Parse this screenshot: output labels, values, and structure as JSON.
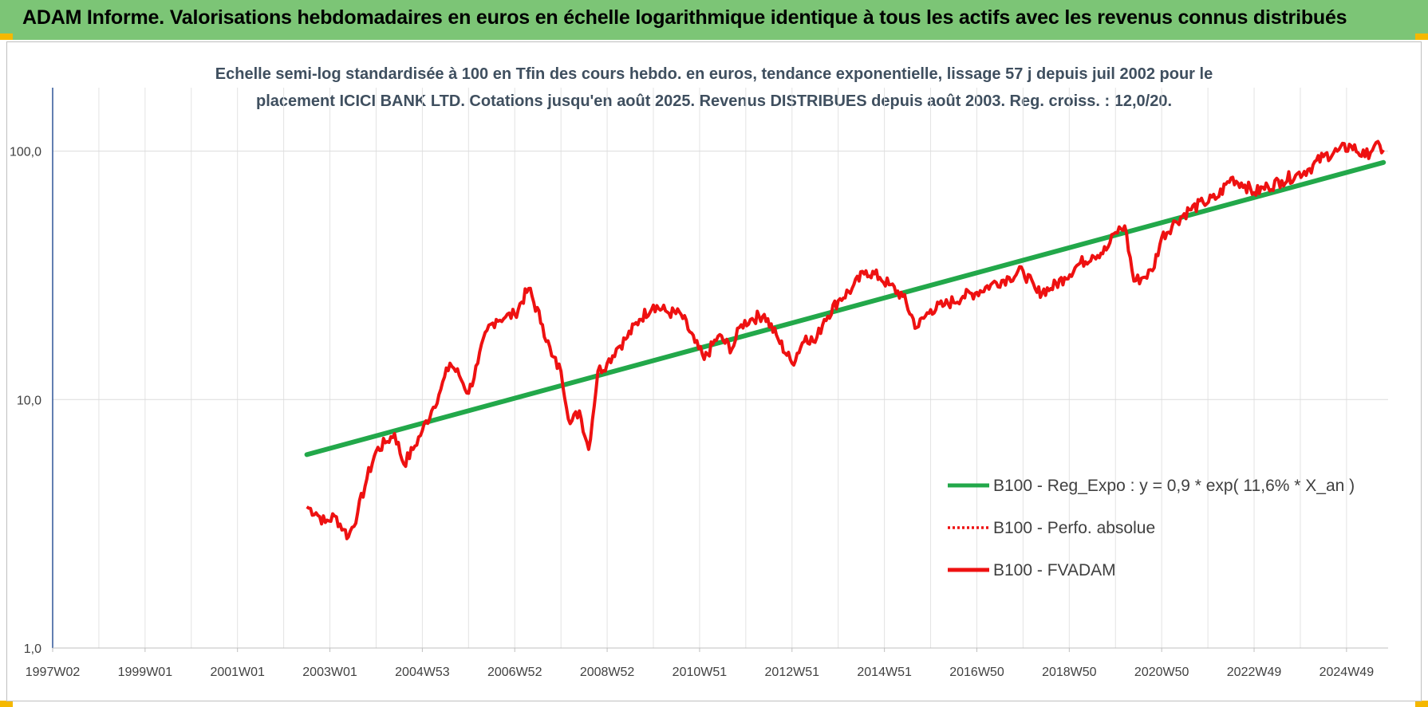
{
  "banner": {
    "title": "ADAM Informe. Valorisations hebdomadaires en euros en échelle logarithmique identique à tous les actifs avec les revenus connus distribués",
    "background": "#7cc576"
  },
  "chart_data": {
    "type": "line",
    "title_lines": [
      "Echelle semi-log standardisée à 100 en Tfin des cours hebdo. en euros, tendance exponentielle, lissage 57 j depuis juil 2002 pour le",
      "placement ICICI BANK LTD. Cotations jusqu'en août 2025.  Revenus DISTRIBUES depuis août 2003. Reg. croiss. : 12,0/20."
    ],
    "y_scale": "log",
    "ylim": [
      1,
      180
    ],
    "y_ticks": [
      {
        "value": 1,
        "label": "1,0"
      },
      {
        "value": 10,
        "label": "10,0"
      },
      {
        "value": 100,
        "label": "100,0"
      }
    ],
    "xlim": [
      1997.0,
      2025.9
    ],
    "x_ticks": [
      {
        "value": 1997.0,
        "label": "1997W02"
      },
      {
        "value": 1999.0,
        "label": "1999W01"
      },
      {
        "value": 2001.0,
        "label": "2001W01"
      },
      {
        "value": 2003.0,
        "label": "2003W01"
      },
      {
        "value": 2005.0,
        "label": "2004W53"
      },
      {
        "value": 2007.0,
        "label": "2006W52"
      },
      {
        "value": 2009.0,
        "label": "2008W52"
      },
      {
        "value": 2011.0,
        "label": "2010W51"
      },
      {
        "value": 2013.0,
        "label": "2012W51"
      },
      {
        "value": 2015.0,
        "label": "2014W51"
      },
      {
        "value": 2017.0,
        "label": "2016W50"
      },
      {
        "value": 2019.0,
        "label": "2018W50"
      },
      {
        "value": 2021.0,
        "label": "2020W50"
      },
      {
        "value": 2023.0,
        "label": "2022W49"
      },
      {
        "value": 2025.0,
        "label": "2024W49"
      }
    ],
    "grid": true,
    "legend_position": "right",
    "series": [
      {
        "name": "B100 - Reg_Expo : y = 0,9 * exp( 11,6% *  X_an )",
        "color": "#22a84a",
        "style": "solid",
        "x": [
          2002.5,
          2025.8
        ],
        "y": [
          6.0,
          90
        ]
      },
      {
        "name": "B100 - Perfo. absolue",
        "color": "#ee1111",
        "style": "dotted",
        "x": [],
        "y": []
      },
      {
        "name": "B100 - FVADAM",
        "color": "#ee1111",
        "style": "solid",
        "x": [
          2002.5,
          2002.7,
          2002.9,
          2003.1,
          2003.3,
          2003.4,
          2003.6,
          2003.8,
          2004.0,
          2004.2,
          2004.4,
          2004.6,
          2004.8,
          2005.0,
          2005.2,
          2005.4,
          2005.6,
          2005.8,
          2006.0,
          2006.2,
          2006.4,
          2006.6,
          2006.8,
          2007.0,
          2007.3,
          2007.6,
          2007.8,
          2008.0,
          2008.2,
          2008.4,
          2008.6,
          2008.8,
          2009.0,
          2009.2,
          2009.4,
          2009.7,
          2010.0,
          2010.3,
          2010.6,
          2010.9,
          2011.1,
          2011.4,
          2011.7,
          2011.9,
          2012.1,
          2012.4,
          2012.7,
          2013.0,
          2013.3,
          2013.5,
          2013.7,
          2014.0,
          2014.3,
          2014.6,
          2014.9,
          2015.1,
          2015.4,
          2015.7,
          2016.0,
          2016.3,
          2016.7,
          2017.0,
          2017.3,
          2017.7,
          2018.0,
          2018.3,
          2018.6,
          2018.9,
          2019.2,
          2019.5,
          2019.8,
          2020.0,
          2020.2,
          2020.4,
          2020.6,
          2020.8,
          2021.0,
          2021.3,
          2021.6,
          2021.9,
          2022.2,
          2022.5,
          2022.8,
          2023.0,
          2023.3,
          2023.6,
          2023.9,
          2024.2,
          2024.5,
          2024.8,
          2025.1,
          2025.4,
          2025.6,
          2025.8
        ],
        "y": [
          3.7,
          3.5,
          3.2,
          3.4,
          3.0,
          2.8,
          3.5,
          4.8,
          6.2,
          6.7,
          7.3,
          5.5,
          6.3,
          7.5,
          9.0,
          11.0,
          14.0,
          12.5,
          10.6,
          14.0,
          19.0,
          21.0,
          21.5,
          22.0,
          28.0,
          20.0,
          15.0,
          13.0,
          8.0,
          9.0,
          6.3,
          13.0,
          14.0,
          16.0,
          17.5,
          21.0,
          24.0,
          22.5,
          22.0,
          17.0,
          14.5,
          18.0,
          16.0,
          20.0,
          21.0,
          22.0,
          17.5,
          14.0,
          18.0,
          17.0,
          21.0,
          25.0,
          28.0,
          33.0,
          31.0,
          29.0,
          26.0,
          19.5,
          23.0,
          24.0,
          26.0,
          27.0,
          29.0,
          31.0,
          33.0,
          27.0,
          28.0,
          31.0,
          35.0,
          38.0,
          40.0,
          47.0,
          50.0,
          30.0,
          31.0,
          33.0,
          45.0,
          52.0,
          58.0,
          62.0,
          65.0,
          78.0,
          73.0,
          68.0,
          72.0,
          76.0,
          80.0,
          85.0,
          95.0,
          100.0,
          105.0,
          95.0,
          105.0,
          101.0
        ]
      }
    ]
  }
}
